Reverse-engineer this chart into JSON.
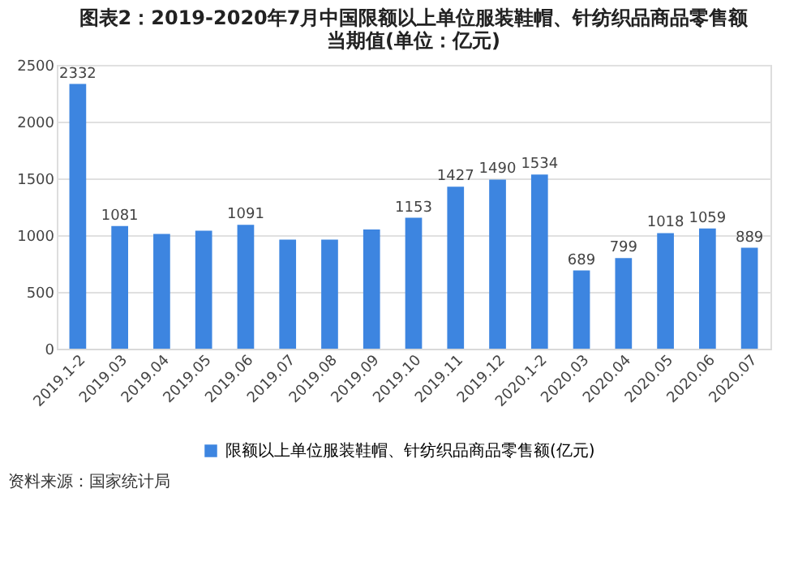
{
  "chart_data": {
    "type": "bar",
    "title": "图表2：2019-2020年7月中国限额以上单位服装鞋帽、针纺织品商品零售额当期值(单位：亿元)",
    "categories": [
      "2019.1-2",
      "2019.03",
      "2019.04",
      "2019.05",
      "2019.06",
      "2019.07",
      "2019.08",
      "2019.09",
      "2019.10",
      "2019.11",
      "2019.12",
      "2020.1-2",
      "2020.03",
      "2020.04",
      "2020.05",
      "2020.06",
      "2020.07"
    ],
    "series": [
      {
        "name": "限额以上单位服装鞋帽、针纺织品商品零售额(亿元)",
        "color": "#3d85e0",
        "values": [
          2332,
          1081,
          1010,
          1040,
          1091,
          960,
          960,
          1050,
          1153,
          1427,
          1490,
          1534,
          689,
          799,
          1018,
          1059,
          889
        ],
        "value_labels": [
          "2332",
          "1081",
          null,
          null,
          "1091",
          null,
          null,
          null,
          "1153",
          "1427",
          "1490",
          "1534",
          "689",
          "799",
          "1018",
          "1059",
          "889"
        ]
      }
    ],
    "ylim": [
      0,
      2500
    ],
    "yticks": [
      0,
      500,
      1000,
      1500,
      2000,
      2500
    ],
    "grid": "y",
    "legend": "bottom",
    "annotations": [
      "资料来源：国家统计局"
    ]
  }
}
